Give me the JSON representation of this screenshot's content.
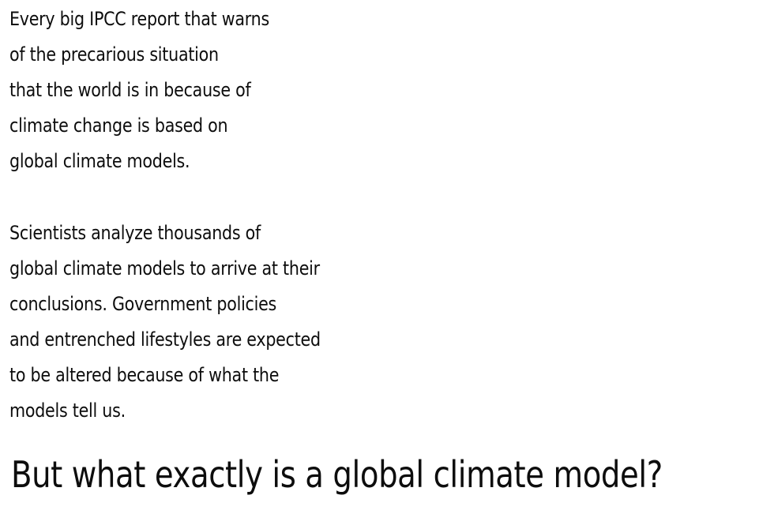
{
  "paragraph1": {
    "lines": [
      "Every big IPCC report that warns",
      "of the precarious situation",
      "that the world is in because of",
      "climate change is based on",
      "global climate models."
    ]
  },
  "paragraph2": {
    "lines": [
      "Scientists analyze thousands of",
      "global climate models to arrive at their",
      "conclusions. Government policies",
      "and entrenched lifestyles are expected",
      "to be altered because of what the",
      "models tell us."
    ]
  },
  "headline": "But what exactly is a global climate model?"
}
